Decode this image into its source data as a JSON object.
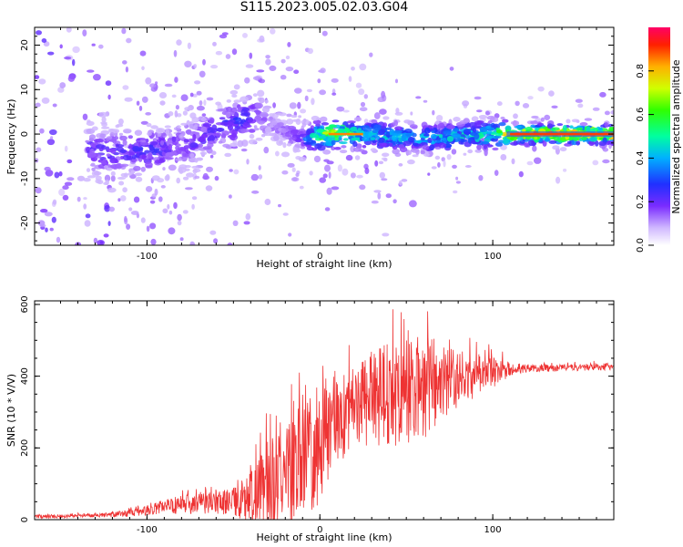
{
  "title": "S115.2023.005.02.03.G04",
  "colors": {
    "series": "#ee3333",
    "colormap": [
      "#ffffff",
      "#dcc8ff",
      "#8c3cff",
      "#4a00ff",
      "#0040ff",
      "#00c8ff",
      "#00ff60",
      "#b0ff00",
      "#ffe000",
      "#ff4000",
      "#ff0060"
    ]
  },
  "chart_data": [
    {
      "type": "heatmap",
      "xlabel": "Height of straight line (km)",
      "ylabel": "Frequency (Hz)",
      "xlim": [
        -165,
        170
      ],
      "ylim": [
        -25,
        24
      ],
      "xticks": [
        -100,
        0,
        100
      ],
      "yticks": [
        -20,
        -10,
        0,
        10,
        20
      ],
      "ridge": [
        {
          "x": -165,
          "y": -4,
          "a": 0.3
        },
        {
          "x": -130,
          "y": -4,
          "a": 0.25
        },
        {
          "x": -100,
          "y": -4,
          "a": 0.28
        },
        {
          "x": -80,
          "y": -3,
          "a": 0.22
        },
        {
          "x": -60,
          "y": 1,
          "a": 0.25
        },
        {
          "x": -45,
          "y": 3,
          "a": 0.3
        },
        {
          "x": -35,
          "y": 4,
          "a": 0.2
        },
        {
          "x": -25,
          "y": 1,
          "a": 0.15
        },
        {
          "x": -10,
          "y": -1,
          "a": 0.25
        },
        {
          "x": 5,
          "y": 0,
          "a": 0.85
        },
        {
          "x": 25,
          "y": 0,
          "a": 0.5
        },
        {
          "x": 60,
          "y": -1,
          "a": 0.45
        },
        {
          "x": 100,
          "y": 0,
          "a": 0.55
        },
        {
          "x": 110,
          "y": 0,
          "a": 0.9
        },
        {
          "x": 170,
          "y": 0,
          "a": 0.9
        }
      ],
      "colorbar": {
        "label": "Normalized spectral amplitude",
        "range": [
          0,
          1
        ],
        "ticks": [
          "0.0",
          "0.2",
          "0.4",
          "0.6",
          "0.8"
        ]
      }
    },
    {
      "type": "line",
      "xlabel": "Height of straight line (km)",
      "ylabel": "SNR (10 * V/V)",
      "xlim": [
        -165,
        170
      ],
      "ylim": [
        0,
        610
      ],
      "xticks": [
        -100,
        0,
        100
      ],
      "yticks": [
        0,
        200,
        400,
        600
      ],
      "series": [
        {
          "name": "SNR",
          "envelope_x": [
            -165,
            -130,
            -110,
            -90,
            -70,
            -50,
            -40,
            -30,
            -20,
            -10,
            0,
            10,
            20,
            30,
            40,
            50,
            60,
            70,
            80,
            90,
            100,
            110,
            120,
            140,
            170
          ],
          "envelope_mean": [
            10,
            12,
            20,
            40,
            50,
            60,
            70,
            120,
            150,
            200,
            240,
            300,
            340,
            370,
            380,
            390,
            400,
            410,
            410,
            415,
            420,
            425,
            425,
            425,
            430
          ],
          "envelope_var": [
            8,
            8,
            15,
            30,
            45,
            60,
            120,
            200,
            230,
            250,
            250,
            180,
            180,
            220,
            230,
            220,
            230,
            170,
            120,
            100,
            70,
            30,
            18,
            15,
            15
          ]
        }
      ]
    }
  ]
}
